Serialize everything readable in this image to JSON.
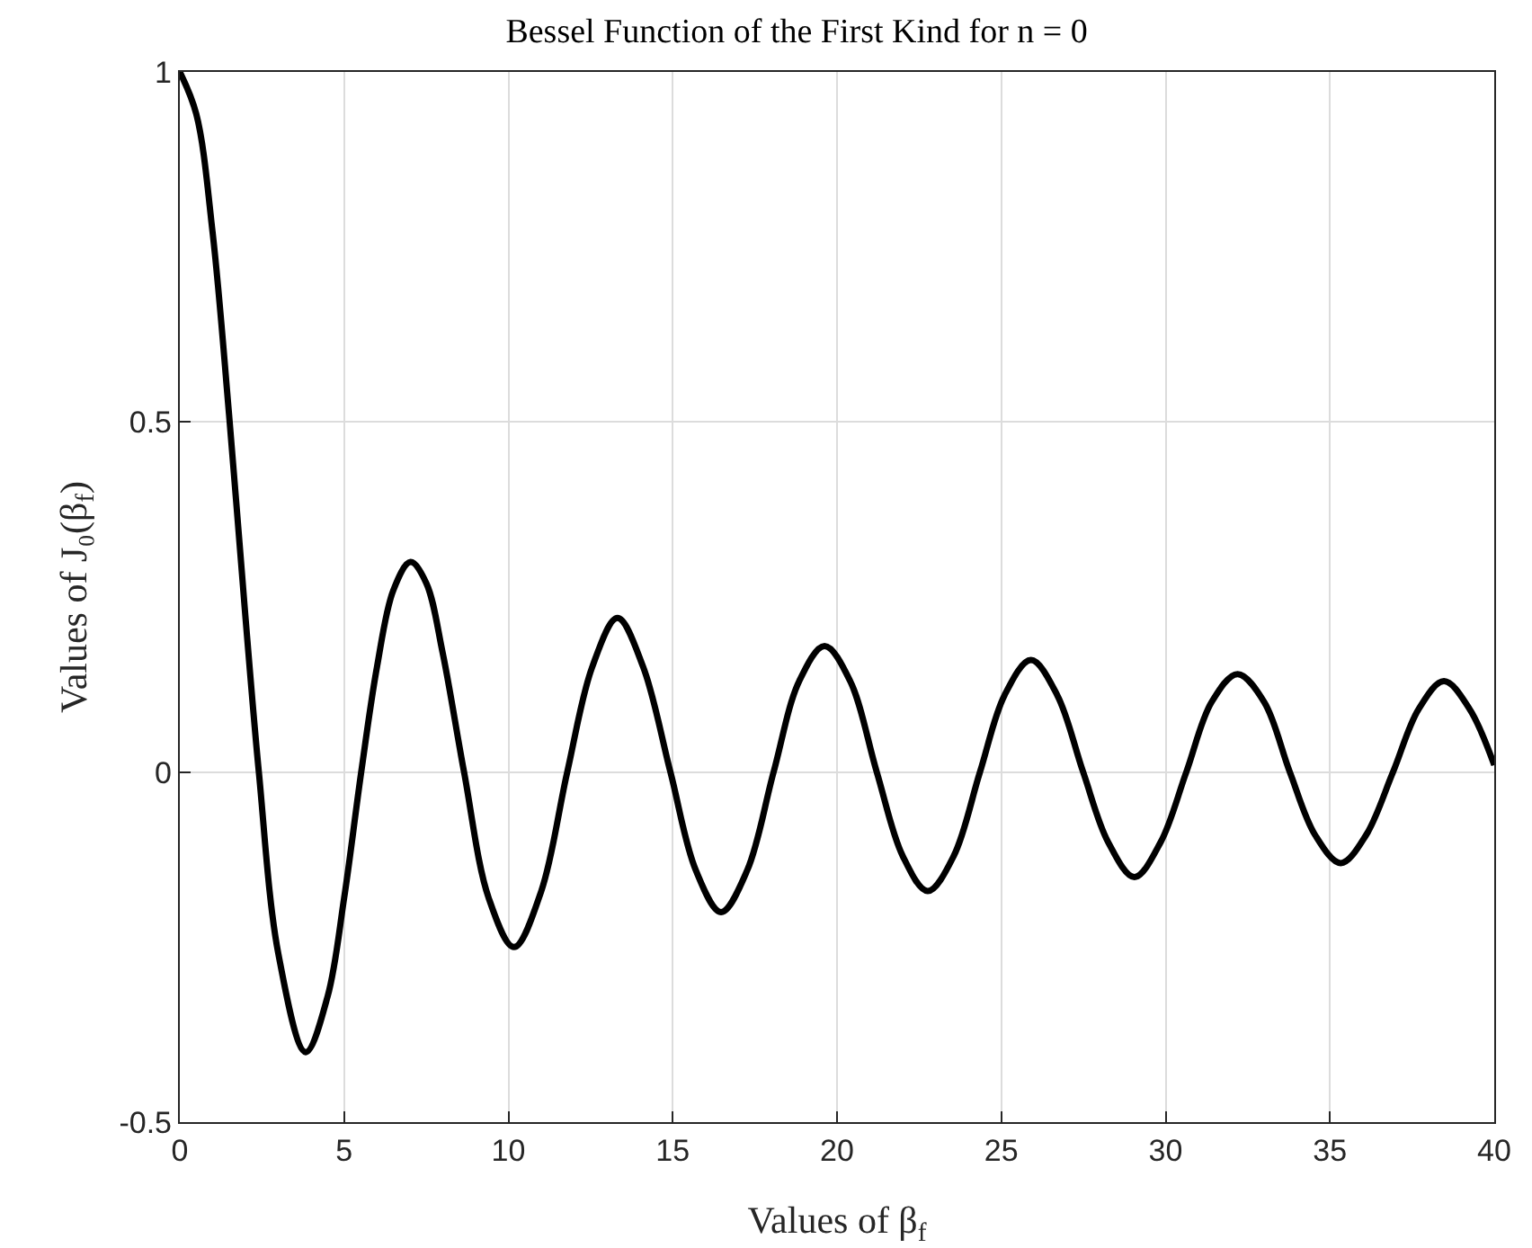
{
  "chart_data": {
    "type": "line",
    "title": "Bessel Function of the First Kind for n = 0",
    "xlabel": "Values of β$_{f}$",
    "ylabel": "Values of J₀(β$_{f}$)",
    "x": [
      0,
      0.5,
      1,
      1.5,
      2,
      2.405,
      3,
      3.83,
      4.5,
      5,
      5.52,
      6,
      6.5,
      7.02,
      7.5,
      8,
      8.65,
      9.4,
      10.17,
      11,
      11.79,
      12.55,
      13.32,
      14.1,
      14.93,
      15.7,
      16.47,
      17.27,
      18.07,
      18.85,
      19.62,
      20.4,
      21.21,
      22,
      22.76,
      23.55,
      24.35,
      25.1,
      25.9,
      26.7,
      27.49,
      28.25,
      29.05,
      29.85,
      30.63,
      31.4,
      32.19,
      33,
      33.78,
      34.55,
      35.33,
      36.1,
      36.92,
      37.7,
      38.47,
      39.25,
      40
    ],
    "series": [
      {
        "color": "#000000",
        "values": [
          1,
          0.94,
          0.77,
          0.51,
          0.22,
          0,
          -0.26,
          -0.4,
          -0.32,
          -0.18,
          0,
          0.15,
          0.26,
          0.3,
          0.27,
          0.17,
          0,
          -0.18,
          -0.25,
          -0.17,
          0,
          0.15,
          0.22,
          0.15,
          0,
          -0.14,
          -0.2,
          -0.14,
          0,
          0.13,
          0.18,
          0.13,
          0,
          -0.12,
          -0.17,
          -0.12,
          0,
          0.11,
          0.16,
          0.11,
          0,
          -0.1,
          -0.15,
          -0.1,
          0,
          0.1,
          0.14,
          0.1,
          0,
          -0.09,
          -0.13,
          -0.09,
          0,
          0.09,
          0.13,
          0.09,
          0.01
        ]
      }
    ],
    "xlim": [
      0,
      40
    ],
    "xticks": [
      0,
      5,
      10,
      15,
      20,
      25,
      30,
      35,
      40
    ],
    "ylim": [
      -0.5,
      1
    ],
    "yticks": [
      -0.5,
      0,
      0.5,
      1
    ],
    "grid": true,
    "marker": "none",
    "line_style": "solid"
  }
}
